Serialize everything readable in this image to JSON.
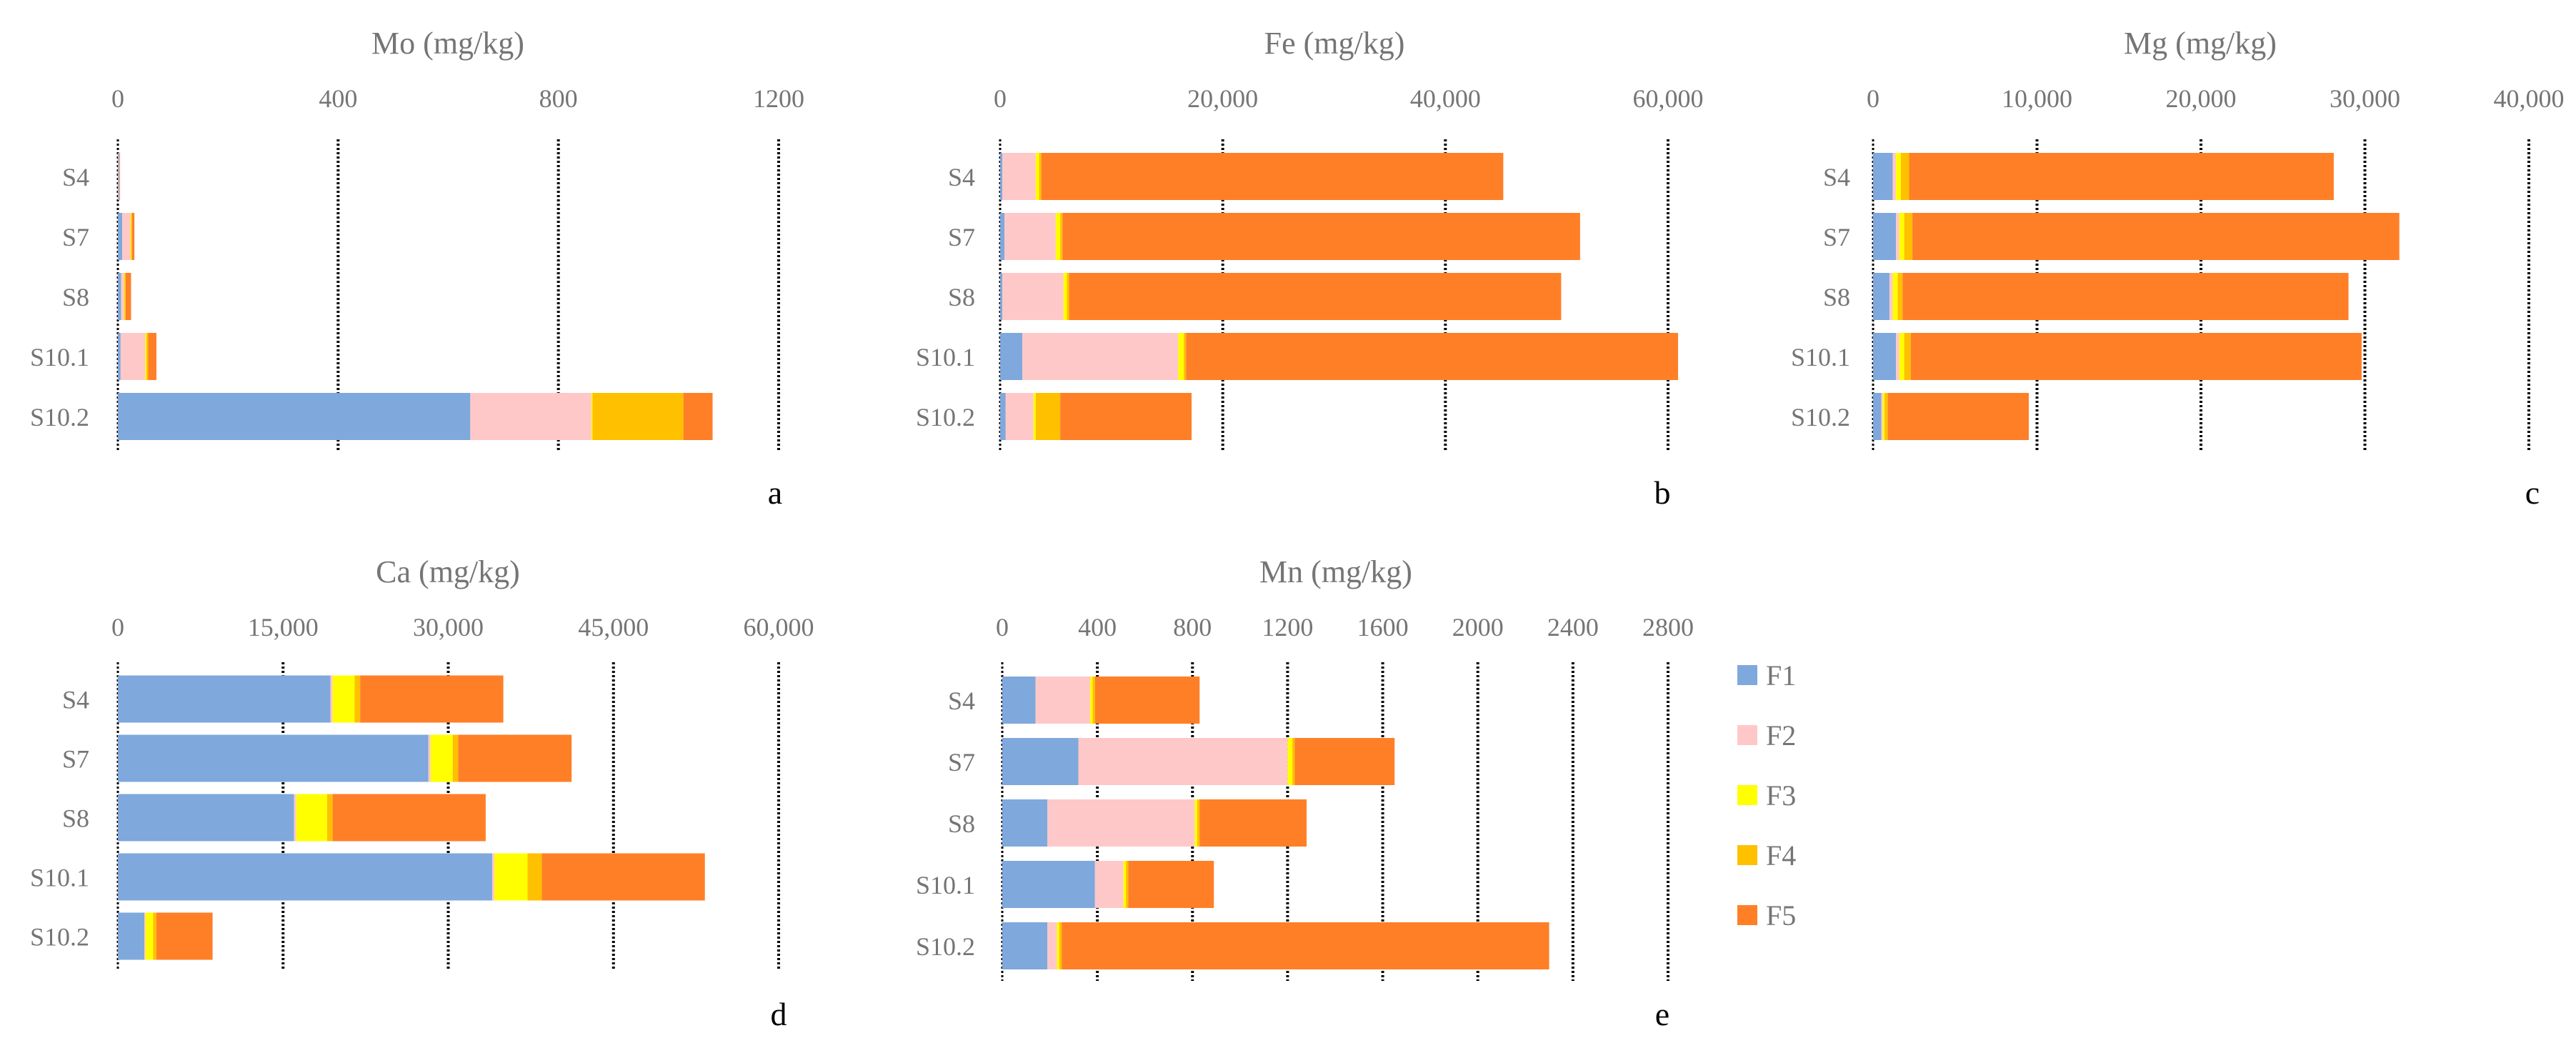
{
  "colors": {
    "F1": "#7FA8DC",
    "F2": "#FFC8C8",
    "F3": "#FFFF00",
    "F4": "#FFC000",
    "F5": "#FF7F27"
  },
  "legend": [
    "F1",
    "F2",
    "F3",
    "F4",
    "F5"
  ],
  "chart_data": [
    {
      "type": "bar",
      "orientation": "horizontal",
      "stacked": true,
      "title": "Mo (mg/kg)",
      "panel_label": "a",
      "categories": [
        "S4",
        "S7",
        "S8",
        "S10.1",
        "S10.2"
      ],
      "xlim": [
        0,
        1200
      ],
      "ticks": [
        0,
        400,
        800,
        1200
      ],
      "tick_labels": [
        "0",
        "400",
        "800",
        "1200"
      ],
      "series": [
        {
          "name": "F1",
          "values": [
            2,
            8,
            6,
            5,
            640
          ]
        },
        {
          "name": "F2",
          "values": [
            1,
            15,
            5,
            45,
            220
          ]
        },
        {
          "name": "F3",
          "values": [
            0,
            1,
            1,
            2,
            2
          ]
        },
        {
          "name": "F4",
          "values": [
            0,
            2,
            2,
            3,
            165
          ]
        },
        {
          "name": "F5",
          "values": [
            1,
            4,
            10,
            15,
            53
          ]
        }
      ]
    },
    {
      "type": "bar",
      "orientation": "horizontal",
      "stacked": true,
      "title": "Fe  (mg/kg)",
      "panel_label": "b",
      "categories": [
        "S4",
        "S7",
        "S8",
        "S10.1",
        "S10.2"
      ],
      "xlim": [
        0,
        60000
      ],
      "ticks": [
        0,
        20000,
        40000,
        60000
      ],
      "tick_labels": [
        "0",
        "20,000",
        "40,000",
        "60,000"
      ],
      "series": [
        {
          "name": "F1",
          "values": [
            200,
            400,
            200,
            2000,
            500
          ]
        },
        {
          "name": "F2",
          "values": [
            3000,
            4600,
            5500,
            14000,
            2500
          ]
        },
        {
          "name": "F3",
          "values": [
            300,
            400,
            300,
            500,
            200
          ]
        },
        {
          "name": "F4",
          "values": [
            200,
            200,
            200,
            200,
            2200
          ]
        },
        {
          "name": "F5",
          "values": [
            41500,
            46500,
            44200,
            44200,
            11800
          ]
        }
      ]
    },
    {
      "type": "bar",
      "orientation": "horizontal",
      "stacked": true,
      "title": "Mg  (mg/kg)",
      "panel_label": "c",
      "categories": [
        "S4",
        "S7",
        "S8",
        "S10.1",
        "S10.2"
      ],
      "xlim": [
        0,
        40000
      ],
      "ticks": [
        0,
        10000,
        20000,
        30000,
        40000
      ],
      "tick_labels": [
        "0",
        "10,000",
        "20,000",
        "30,000",
        "40,000"
      ],
      "series": [
        {
          "name": "F1",
          "values": [
            1200,
            1400,
            1000,
            1400,
            500
          ]
        },
        {
          "name": "F2",
          "values": [
            200,
            200,
            200,
            200,
            100
          ]
        },
        {
          "name": "F3",
          "values": [
            300,
            300,
            300,
            300,
            100
          ]
        },
        {
          "name": "F4",
          "values": [
            500,
            500,
            300,
            400,
            200
          ]
        },
        {
          "name": "F5",
          "values": [
            25900,
            29700,
            27200,
            27500,
            8600
          ]
        }
      ]
    },
    {
      "type": "bar",
      "orientation": "horizontal",
      "stacked": true,
      "title": "Ca  (mg/kg)",
      "panel_label": "d",
      "categories": [
        "S4",
        "S7",
        "S8",
        "S10.1",
        "S10.2"
      ],
      "xlim": [
        0,
        60000
      ],
      "ticks": [
        0,
        15000,
        30000,
        45000,
        60000
      ],
      "tick_labels": [
        "0",
        "15,000",
        "30,000",
        "45,000",
        "60,000"
      ],
      "series": [
        {
          "name": "F1",
          "values": [
            19300,
            28200,
            16000,
            34000,
            2400
          ]
        },
        {
          "name": "F2",
          "values": [
            200,
            200,
            200,
            200,
            100
          ]
        },
        {
          "name": "F3",
          "values": [
            2000,
            2000,
            2800,
            3000,
            700
          ]
        },
        {
          "name": "F4",
          "values": [
            500,
            500,
            500,
            1300,
            300
          ]
        },
        {
          "name": "F5",
          "values": [
            13000,
            10300,
            13900,
            14800,
            5100
          ]
        }
      ]
    },
    {
      "type": "bar",
      "orientation": "horizontal",
      "stacked": true,
      "title": "Mn  (mg/kg)",
      "panel_label": "e",
      "categories": [
        "S4",
        "S7",
        "S8",
        "S10.1",
        "S10.2"
      ],
      "xlim": [
        0,
        2800
      ],
      "ticks": [
        0,
        400,
        800,
        1200,
        1600,
        2000,
        2400,
        2800
      ],
      "tick_labels": [
        "0",
        "400",
        "800",
        "1200",
        "1600",
        "2000",
        "2400",
        "2800"
      ],
      "series": [
        {
          "name": "F1",
          "values": [
            140,
            320,
            190,
            390,
            190
          ]
        },
        {
          "name": "F2",
          "values": [
            230,
            880,
            620,
            120,
            40
          ]
        },
        {
          "name": "F3",
          "values": [
            10,
            20,
            10,
            10,
            10
          ]
        },
        {
          "name": "F4",
          "values": [
            10,
            10,
            10,
            10,
            10
          ]
        },
        {
          "name": "F5",
          "values": [
            440,
            420,
            450,
            360,
            2050
          ]
        }
      ]
    }
  ]
}
